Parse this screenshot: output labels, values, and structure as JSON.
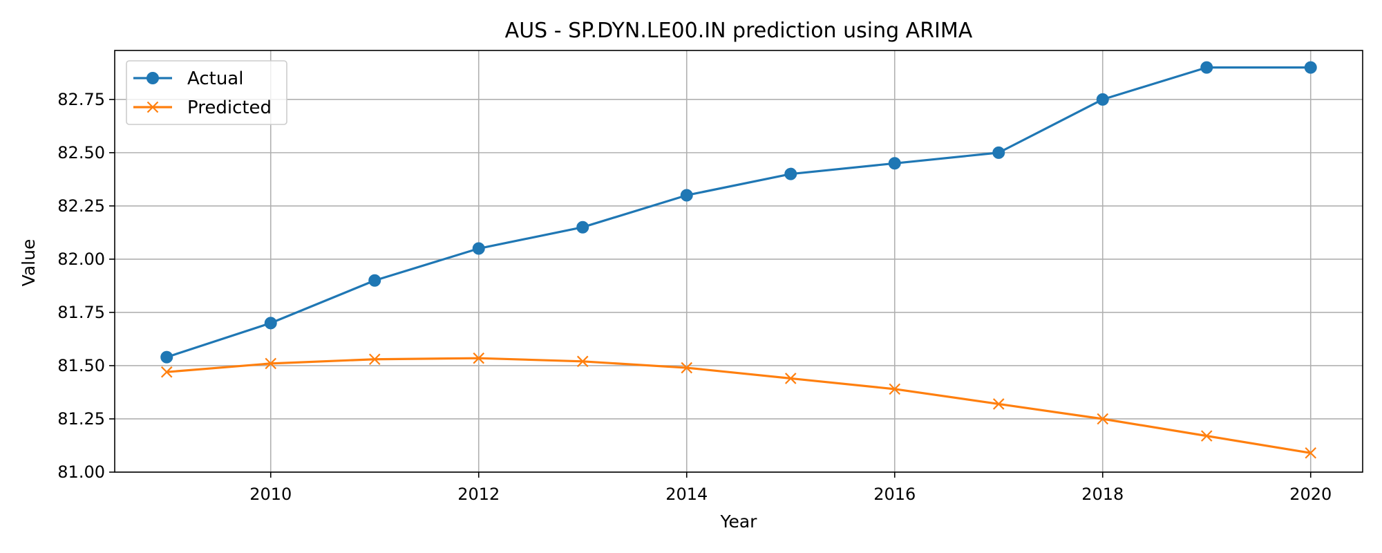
{
  "chart_data": {
    "type": "line",
    "title": "AUS - SP.DYN.LE00.IN prediction using ARIMA",
    "xlabel": "Year",
    "ylabel": "Value",
    "xlim": [
      2008.5,
      2020.5
    ],
    "ylim": [
      81.0,
      82.98
    ],
    "x_ticks": [
      2010,
      2012,
      2014,
      2016,
      2018,
      2020
    ],
    "y_ticks": [
      81.0,
      81.25,
      81.5,
      81.75,
      82.0,
      82.25,
      82.5,
      82.75
    ],
    "y_tick_labels": [
      "81.00",
      "81.25",
      "81.50",
      "81.75",
      "82.00",
      "82.25",
      "82.50",
      "82.75"
    ],
    "grid": true,
    "legend_position": "top-left",
    "x": [
      2009,
      2010,
      2011,
      2012,
      2013,
      2014,
      2015,
      2016,
      2017,
      2018,
      2019,
      2020
    ],
    "series": [
      {
        "name": "Actual",
        "marker": "circle",
        "color": "#1f77b4",
        "values": [
          81.54,
          81.7,
          81.9,
          82.05,
          82.15,
          82.3,
          82.4,
          82.45,
          82.5,
          82.75,
          82.9,
          82.9
        ]
      },
      {
        "name": "Predicted",
        "marker": "x",
        "color": "#ff7f0e",
        "values": [
          81.47,
          81.51,
          81.53,
          81.535,
          81.52,
          81.49,
          81.44,
          81.39,
          81.32,
          81.25,
          81.17,
          81.09
        ]
      }
    ]
  }
}
